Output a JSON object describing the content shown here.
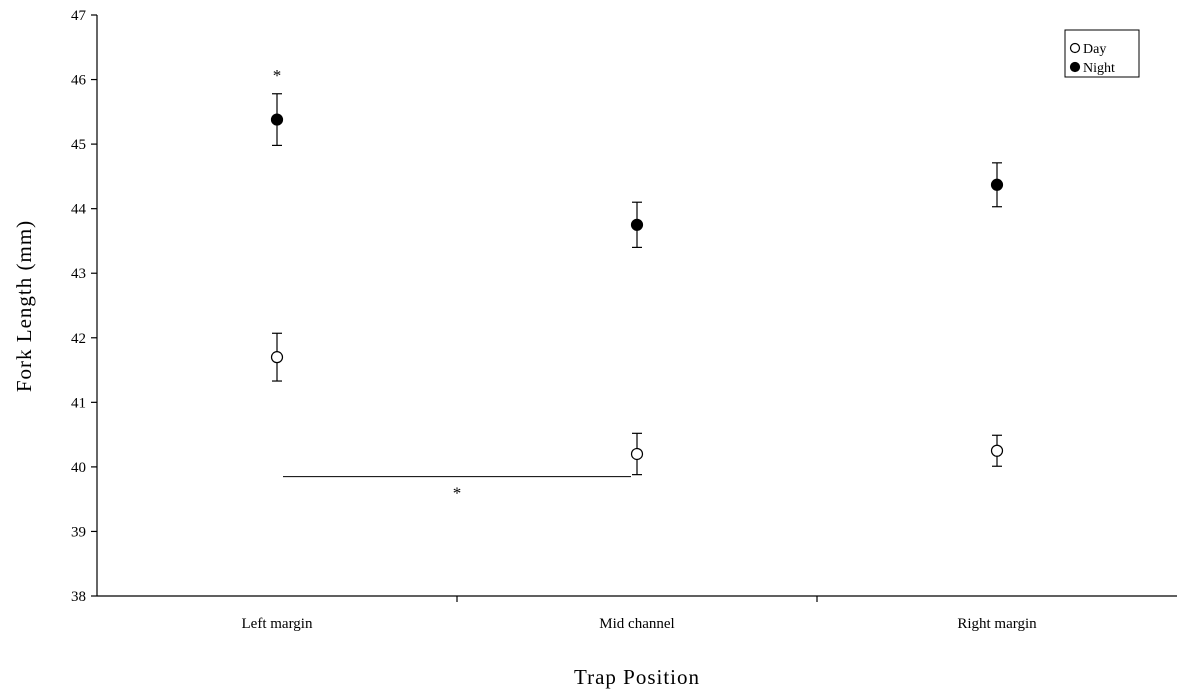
{
  "chart_data": {
    "type": "scatter",
    "xlabel": "Trap Position",
    "ylabel": "Fork Length (mm)",
    "ylim": [
      38,
      47
    ],
    "yticks": [
      38,
      39,
      40,
      41,
      42,
      43,
      44,
      45,
      46,
      47
    ],
    "categories": [
      "Left margin",
      "Mid channel",
      "Right margin"
    ],
    "grid": false,
    "legend": {
      "placement": "top-right",
      "entries": [
        "Day",
        "Night"
      ]
    },
    "series": [
      {
        "name": "Day",
        "marker": "open-circle",
        "values": [
          41.7,
          40.2,
          40.25
        ],
        "errors": [
          0.37,
          0.32,
          0.24
        ]
      },
      {
        "name": "Night",
        "marker": "filled-circle",
        "values": [
          45.38,
          43.75,
          44.37
        ],
        "errors": [
          0.4,
          0.35,
          0.34
        ]
      }
    ],
    "annotations": [
      {
        "type": "asterisk",
        "text": "*",
        "category": "Left margin",
        "y": 46.1
      },
      {
        "type": "bracket",
        "text": "*",
        "from": "Left margin",
        "to": "Mid channel",
        "y": 39.85
      }
    ]
  }
}
